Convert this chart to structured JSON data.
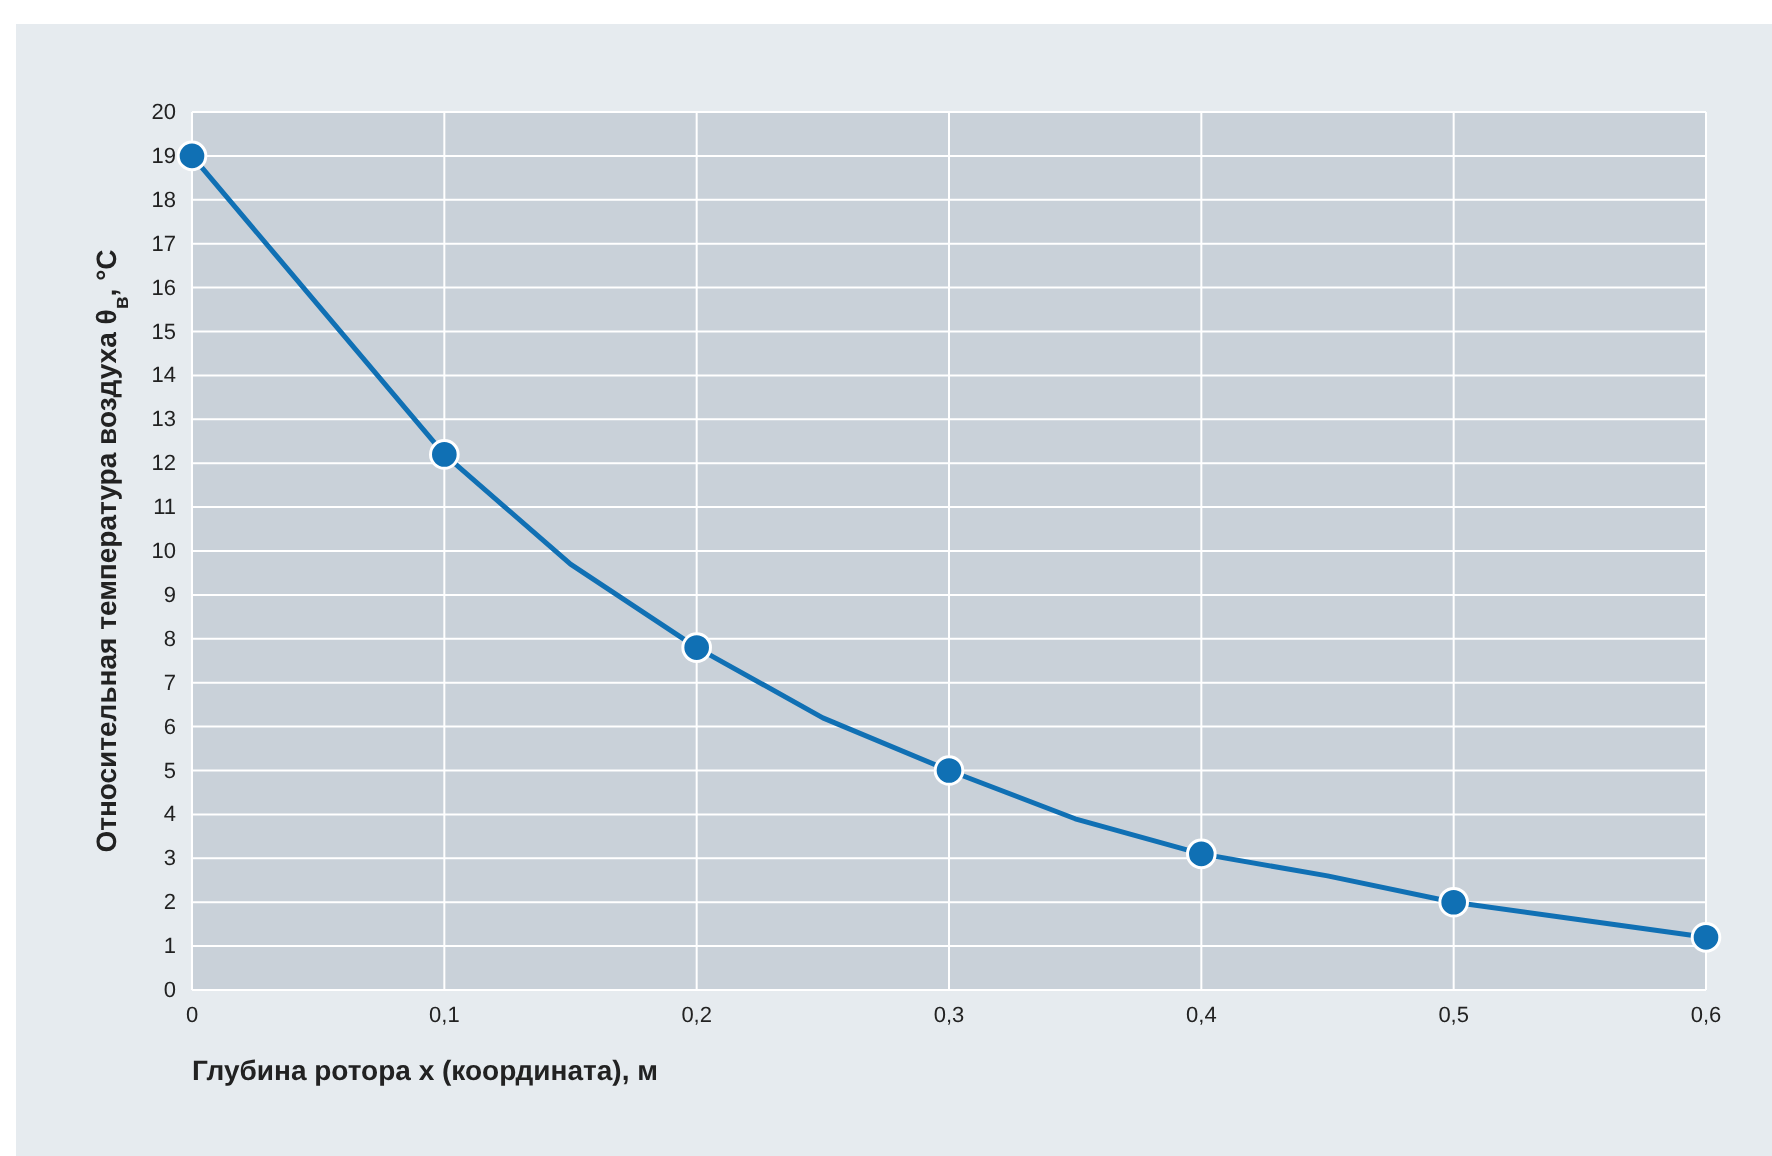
{
  "chart_data": {
    "type": "line",
    "xlabel": "Глубина ротора x (координата), м",
    "ylabel": "Относительная температура воздуха θ$_{в}$, °C",
    "xlim": [
      0,
      0.6
    ],
    "ylim": [
      0,
      20
    ],
    "xticks": [
      0,
      {
        "value": 0.1,
        "label": "0,1"
      },
      {
        "value": 0.2,
        "label": "0,2"
      },
      {
        "value": 0.3,
        "label": "0,3"
      },
      {
        "value": 0.4,
        "label": "0,4"
      },
      {
        "value": 0.5,
        "label": "0,5"
      },
      {
        "value": 0.6,
        "label": "0,6"
      }
    ],
    "yticks": [
      0,
      1,
      2,
      3,
      4,
      5,
      6,
      7,
      8,
      9,
      10,
      11,
      12,
      13,
      14,
      15,
      16,
      17,
      18,
      19,
      20
    ],
    "grid": true,
    "line_style": "solid",
    "series": [
      {
        "marker": "none",
        "color": "#1070b4",
        "x": [
          0,
          0.1,
          0.15,
          0.2,
          0.25,
          0.3,
          0.35,
          0.4,
          0.45,
          0.5,
          0.55,
          0.6
        ],
        "values": [
          19,
          12.2,
          9.7,
          7.8,
          6.2,
          5.0,
          3.9,
          3.1,
          2.6,
          2.0,
          1.6,
          1.2
        ]
      },
      {
        "type": "scatter",
        "marker": "circle",
        "color": "#1070b4",
        "x": [
          0,
          0.1,
          0.2,
          0.3,
          0.4,
          0.5,
          0.6
        ],
        "values": [
          19,
          12.2,
          7.8,
          5.0,
          3.1,
          2.0,
          1.2
        ]
      }
    ]
  }
}
